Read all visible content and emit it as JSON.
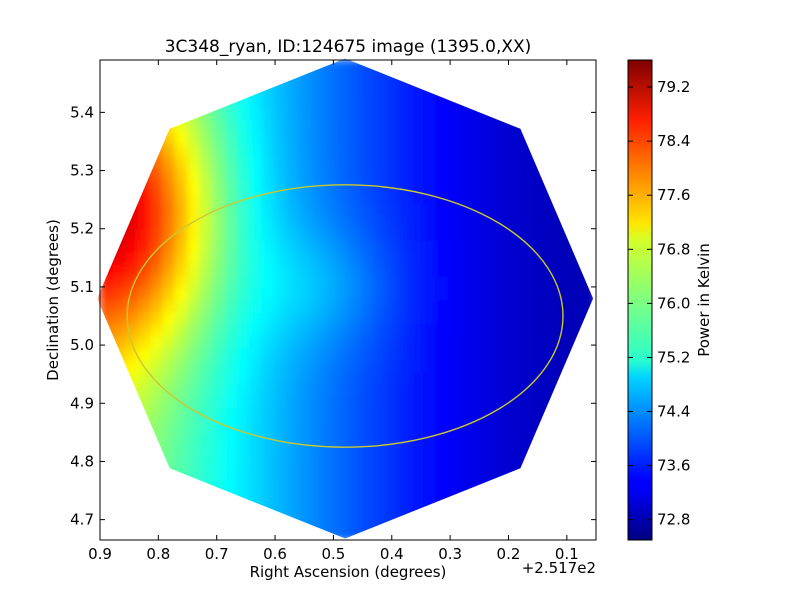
{
  "chart_data": {
    "type": "heatmap",
    "title": "3C348_ryan, ID:124675 image (1395.0,XX)",
    "xlabel": "Right Ascension (degrees)",
    "ylabel": "Declination (degrees)",
    "x_offset_label": "+2.517e2",
    "x_ticks": [
      0.9,
      0.8,
      0.7,
      0.6,
      0.5,
      0.4,
      0.3,
      0.2,
      0.1
    ],
    "x_tick_labels": [
      "0.9",
      "0.8",
      "0.7",
      "0.6",
      "0.5",
      "0.4",
      "0.3",
      "0.2",
      "0.1"
    ],
    "xlim": [
      0.9,
      0.05
    ],
    "y_ticks": [
      4.7,
      4.8,
      4.9,
      5.0,
      5.1,
      5.2,
      5.3,
      5.4
    ],
    "y_tick_labels": [
      "4.7",
      "4.8",
      "4.9",
      "5.0",
      "5.1",
      "5.2",
      "5.3",
      "5.4"
    ],
    "ylim": [
      4.665,
      5.49
    ],
    "colorbar": {
      "label": "Power in Kelvin",
      "range": [
        72.5,
        79.6
      ],
      "ticks": [
        72.8,
        73.6,
        74.4,
        75.2,
        76.0,
        76.8,
        77.6,
        78.4,
        79.2
      ],
      "tick_labels": [
        "72.8",
        "73.6",
        "74.4",
        "75.2",
        "76.0",
        "76.8",
        "77.6",
        "78.4",
        "79.2"
      ],
      "colormap": "jet"
    },
    "map": {
      "shape": "octagon",
      "center": [
        0.48,
        5.08
      ],
      "extent_x": [
        0.05,
        0.9
      ],
      "extent_y": [
        4.665,
        5.49
      ],
      "min_temperature": 72.6,
      "max_temperature": 79.5,
      "gradient": "hot toward west (high RA, left), cold toward east (low RA, right)"
    },
    "circle": {
      "center": [
        0.48,
        5.05
      ],
      "radius_deg": 0.37,
      "color": "#c8c832"
    },
    "grid": false
  }
}
